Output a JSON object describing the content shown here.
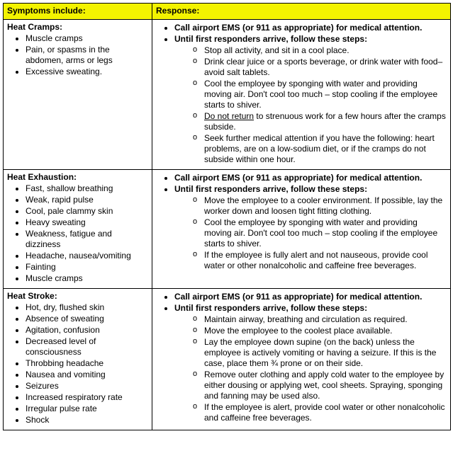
{
  "headers": {
    "symptoms": "Symptoms include:",
    "response": "Response:"
  },
  "row1": {
    "title": "Heat Cramps:",
    "symptoms": [
      "Muscle cramps",
      "Pain, or spasms in the abdomen, arms or legs",
      "Excessive sweating."
    ],
    "resp_a": "Call airport EMS (or 911 as appropriate) for medical attention.",
    "resp_b": "Until first responders arrive, follow these steps:",
    "sub": [
      "Stop all activity, and sit in a cool place.",
      "Drink clear juice or a sports beverage, or drink water with food–avoid salt tablets.",
      "Cool the employee by sponging with water and providing moving air.  Don't cool too much – stop cooling if the employee starts to shiver.",
      "",
      "Seek further medical attention if you have the following: heart problems, are on a low-sodium diet, or if the cramps do not subside within one hour."
    ],
    "sub_underline_prefix": "Do not return",
    "sub_underline_rest": " to strenuous work for a few hours after the cramps subside."
  },
  "row2": {
    "title": "Heat Exhaustion:",
    "symptoms": [
      "Fast, shallow breathing",
      "Weak, rapid pulse",
      "Cool, pale clammy skin",
      "Heavy sweating",
      "Weakness, fatigue and dizziness",
      "Headache, nausea/vomiting",
      "Fainting",
      "Muscle cramps"
    ],
    "resp_a": "Call airport EMS (or 911 as appropriate) for medical attention.",
    "resp_b": "Until first responders arrive, follow these steps:",
    "sub": [
      "Move the employee to a cooler environment.  If possible, lay the worker down and loosen tight fitting clothing.",
      "Cool the employee by sponging with water and providing moving air.  Don't cool too much – stop cooling if the employee starts to shiver.",
      "If the employee is fully alert and not nauseous, provide cool water or other nonalcoholic and caffeine free beverages."
    ]
  },
  "row3": {
    "title": "Heat Stroke:",
    "symptoms": [
      "Hot, dry, flushed skin",
      "Absence of sweating",
      "Agitation, confusion",
      "Decreased level of consciousness",
      "Throbbing headache",
      "Nausea and vomiting",
      "Seizures",
      "Increased respiratory rate",
      "Irregular pulse rate",
      "Shock"
    ],
    "resp_a": "Call airport EMS (or 911 as appropriate) for medical attention.",
    "resp_b": "Until first responders arrive, follow these steps:",
    "sub": [
      "Maintain airway, breathing and circulation as required.",
      "Move the employee to the coolest place available.",
      "Lay the employee down supine (on the back) unless the employee is actively vomiting or having a seizure.  If this is the case, place them ¾ prone or on their side.",
      "Remove outer clothing and apply cold water to the employee by either dousing or applying wet, cool sheets.  Spraying, sponging and fanning may be used also.",
      "If the employee is alert, provide cool water or other nonalcoholic and caffeine free beverages."
    ]
  }
}
